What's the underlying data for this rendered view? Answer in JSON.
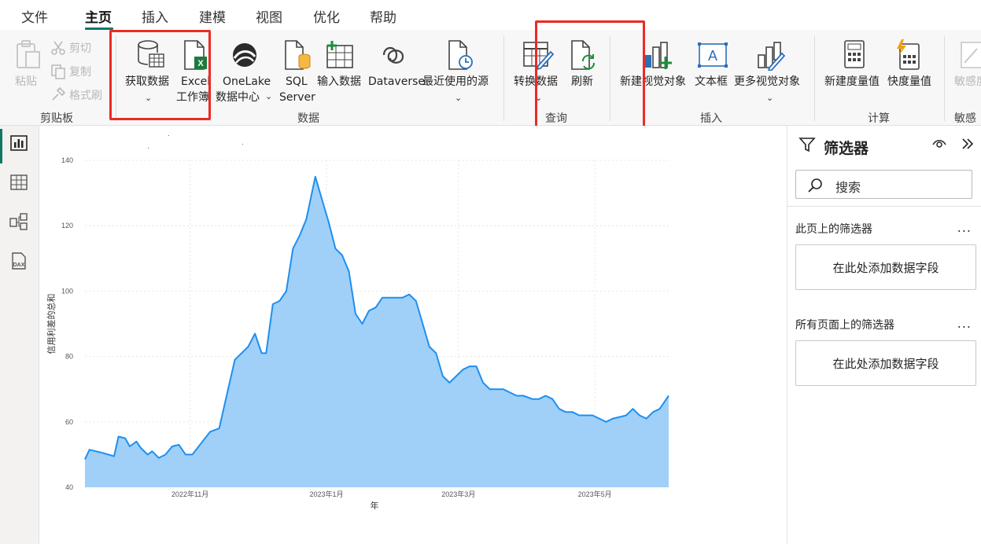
{
  "menu": {
    "items": [
      {
        "label": "文件"
      },
      {
        "label": "主页",
        "active": true
      },
      {
        "label": "插入"
      },
      {
        "label": "建模"
      },
      {
        "label": "视图"
      },
      {
        "label": "优化"
      },
      {
        "label": "帮助"
      }
    ]
  },
  "ribbon": {
    "clipboard": {
      "paste": "粘贴",
      "cut": "剪切",
      "copy": "复制",
      "format_painter": "格式刷",
      "group_label": "剪贴板"
    },
    "data": {
      "get_data": "获取数据",
      "excel_line1": "Excel",
      "excel_line2": "工作簿",
      "onelake_line1": "OneLake",
      "onelake_line2": "数据中心",
      "sql_line1": "SQL",
      "sql_line2": "Server",
      "enter_data": "输入数据",
      "dataverse": "Dataverse",
      "recent_sources": "最近使用的源",
      "group_label": "数据"
    },
    "queries": {
      "transform_data": "转换数据",
      "refresh": "刷新",
      "group_label": "查询"
    },
    "insert": {
      "new_visual": "新建视觉对象",
      "text_box": "文本框",
      "more_visuals": "更多视觉对象",
      "group_label": "插入"
    },
    "calculations": {
      "new_measure": "新建度量值",
      "quick_measure": "快度量值",
      "group_label": "计算"
    },
    "sensitivity": {
      "label": "敏感度",
      "group_label": "敏感度"
    }
  },
  "colors": {
    "accent": "#117865",
    "highlight_box": "#ec2a24",
    "area_fill": "#a0d0f8",
    "area_line": "#1e8ff0"
  },
  "chart_data": {
    "type": "area",
    "xlabel": "年",
    "ylabel": "信用利差的总和",
    "ylim": [
      40,
      140
    ],
    "yticks": [
      40,
      60,
      80,
      100,
      120,
      140
    ],
    "xtick_labels": [
      "2022年11月",
      "2023年1月",
      "2023年3月",
      "2023年5月"
    ],
    "grid": true,
    "series": [
      {
        "x": [
          "2022-09-15",
          "2022-09-17",
          "2022-09-23",
          "2022-09-28",
          "2022-09-30",
          "2022-10-03",
          "2022-10-05",
          "2022-10-08",
          "2022-10-10",
          "2022-10-13",
          "2022-10-15",
          "2022-10-18",
          "2022-10-21",
          "2022-10-24",
          "2022-10-27",
          "2022-10-30",
          "2022-11-02",
          "2022-11-06",
          "2022-11-10",
          "2022-11-14",
          "2022-11-17",
          "2022-11-21",
          "2022-11-24",
          "2022-11-27",
          "2022-11-30",
          "2022-12-03",
          "2022-12-05",
          "2022-12-08",
          "2022-12-11",
          "2022-12-14",
          "2022-12-17",
          "2022-12-20",
          "2022-12-23",
          "2022-12-27",
          "2022-12-30",
          "2023-01-02",
          "2023-01-05",
          "2023-01-08",
          "2023-01-11",
          "2023-01-14",
          "2023-01-17",
          "2023-01-20",
          "2023-01-23",
          "2023-01-26",
          "2023-01-29",
          "2023-02-01",
          "2023-02-04",
          "2023-02-07",
          "2023-02-10",
          "2023-02-13",
          "2023-02-16",
          "2023-02-19",
          "2023-02-22",
          "2023-02-25",
          "2023-02-28",
          "2023-03-03",
          "2023-03-06",
          "2023-03-09",
          "2023-03-12",
          "2023-03-15",
          "2023-03-18",
          "2023-03-21",
          "2023-03-24",
          "2023-03-27",
          "2023-03-30",
          "2023-04-03",
          "2023-04-06",
          "2023-04-09",
          "2023-04-12",
          "2023-04-15",
          "2023-04-18",
          "2023-04-21",
          "2023-04-24",
          "2023-04-27",
          "2023-04-30",
          "2023-05-03",
          "2023-05-06",
          "2023-05-09",
          "2023-05-12",
          "2023-05-15",
          "2023-05-18",
          "2023-05-21",
          "2023-05-24",
          "2023-05-27",
          "2023-05-30",
          "2023-06-01",
          "2023-06-03"
        ],
        "y": [
          48.5,
          51.5,
          50.5,
          49.5,
          55.5,
          55,
          52.5,
          54,
          52,
          50,
          51,
          49,
          50,
          52.5,
          53,
          50,
          50,
          53.5,
          57,
          58,
          67,
          79,
          81,
          83,
          87,
          81,
          81,
          96,
          97,
          100,
          113,
          117,
          122,
          135,
          128,
          121,
          113,
          111,
          106,
          93,
          90,
          94,
          95,
          98,
          98,
          98,
          98,
          99,
          97,
          90,
          83,
          81,
          74,
          72,
          74,
          76,
          77,
          77,
          72,
          70,
          70,
          70,
          69,
          68,
          68,
          67,
          67,
          68,
          67,
          64,
          63,
          63,
          62,
          62,
          62,
          61,
          60,
          61,
          61.5,
          62,
          64,
          62,
          61,
          63,
          64,
          66,
          68
        ]
      }
    ]
  },
  "filters_pane": {
    "title": "筛选器",
    "search_placeholder": "搜索",
    "this_page": "此页上的筛选器",
    "all_pages": "所有页面上的筛选器",
    "add_field": "在此处添加数据字段",
    "more": "..."
  }
}
